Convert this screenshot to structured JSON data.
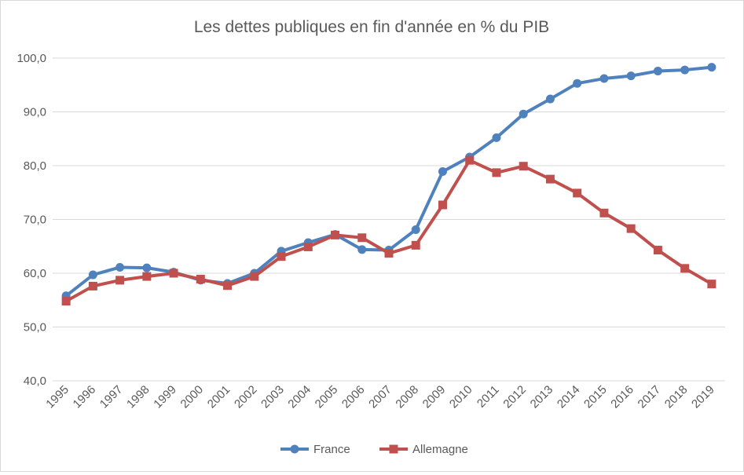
{
  "chart_data": {
    "type": "line",
    "title": "Les dettes publiques en fin d'année en % du PIB",
    "xlabel": "",
    "ylabel": "",
    "ylim": [
      40,
      100
    ],
    "yticks": [
      "40,0",
      "50,0",
      "60,0",
      "70,0",
      "80,0",
      "90,0",
      "100,0"
    ],
    "grid": true,
    "legend": "bottom",
    "categories": [
      "1995",
      "1996",
      "1997",
      "1998",
      "1999",
      "2000",
      "2001",
      "2002",
      "2003",
      "2004",
      "2005",
      "2006",
      "2007",
      "2008",
      "2009",
      "2010",
      "2011",
      "2012",
      "2013",
      "2014",
      "2015",
      "2016",
      "2017",
      "2018",
      "2019"
    ],
    "series": [
      {
        "name": "France",
        "color": "#4f81bd",
        "marker": "circle",
        "values": [
          55.8,
          59.7,
          61.1,
          61.0,
          60.2,
          58.7,
          58.1,
          60.0,
          64.1,
          65.7,
          67.2,
          64.4,
          64.3,
          68.1,
          78.9,
          81.6,
          85.2,
          89.6,
          92.4,
          95.3,
          96.2,
          96.7,
          97.6,
          97.8,
          98.3
        ]
      },
      {
        "name": "Allemagne",
        "color": "#c0504d",
        "marker": "square",
        "values": [
          54.8,
          57.6,
          58.7,
          59.4,
          60.0,
          58.9,
          57.7,
          59.4,
          63.1,
          64.9,
          67.1,
          66.6,
          63.7,
          65.2,
          72.7,
          81.0,
          78.7,
          79.9,
          77.5,
          74.9,
          71.2,
          68.3,
          64.3,
          60.9,
          58.0
        ]
      }
    ]
  }
}
